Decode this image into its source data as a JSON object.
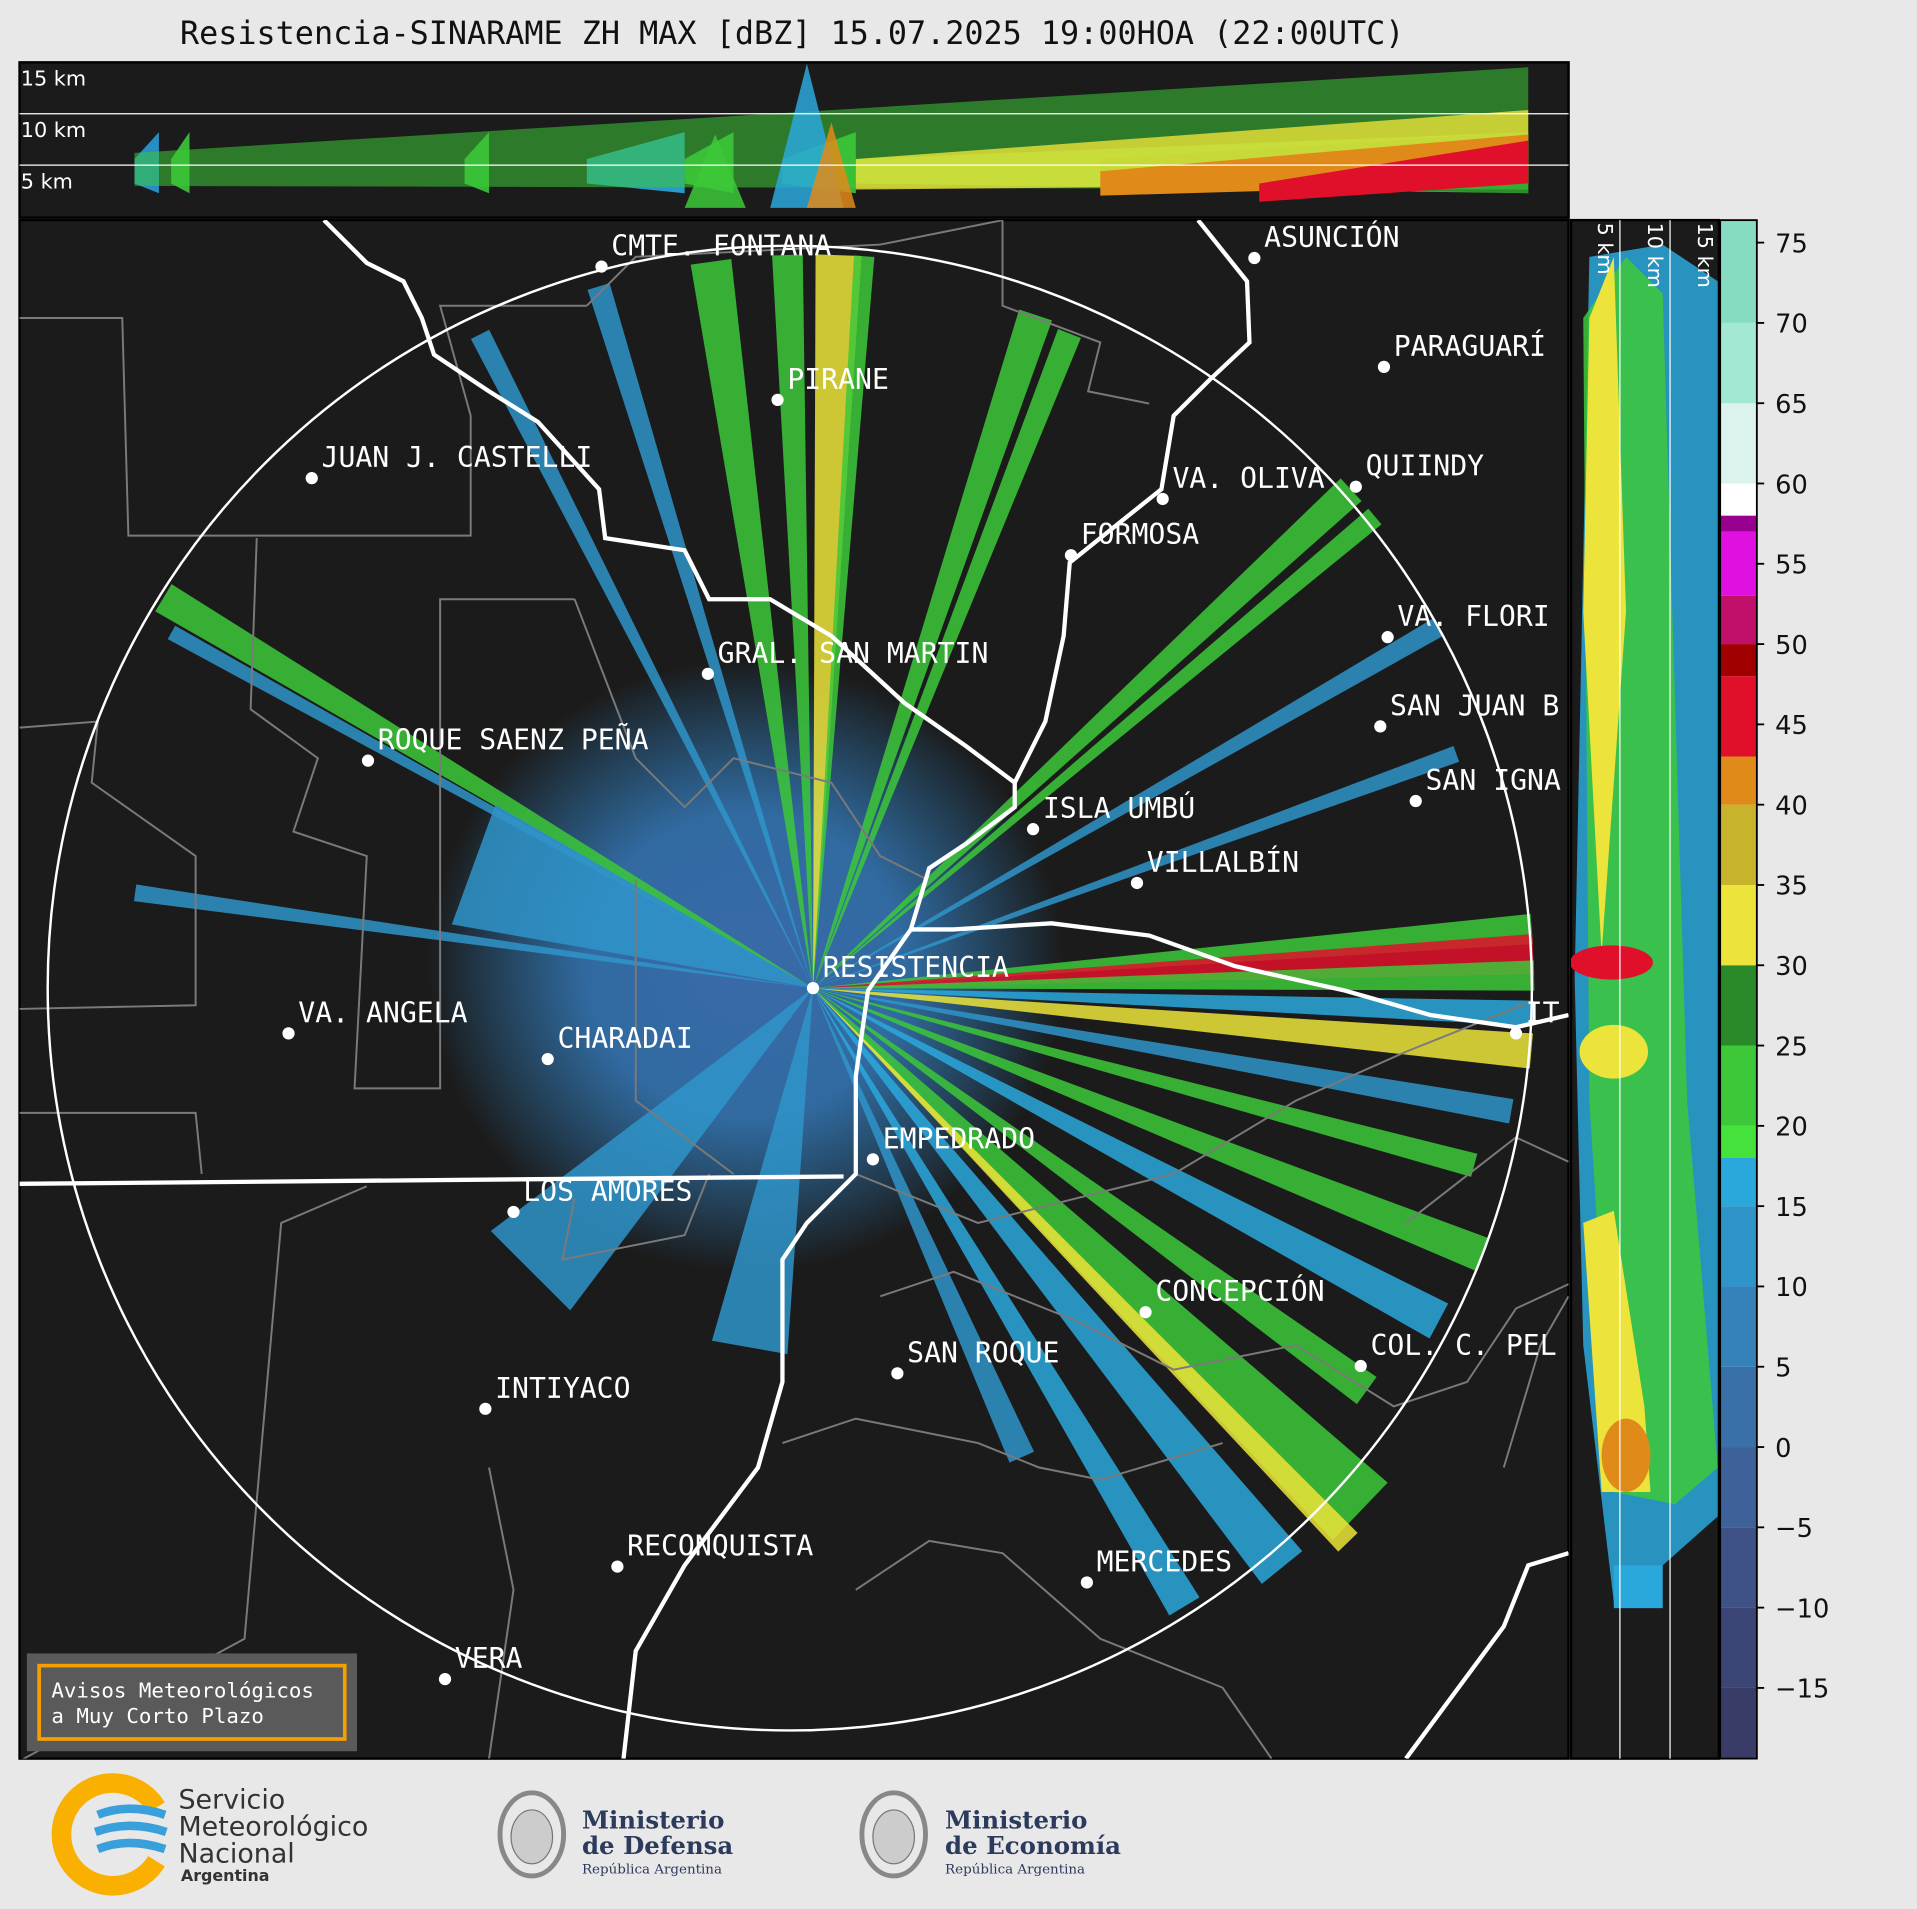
{
  "title": "Resistencia-SINARAME ZH MAX [dBZ] 15.07.2025 19:00HOA (22:00UTC)",
  "top_panel": {
    "height_labels": [
      "15 km",
      "10 km",
      "5 km"
    ]
  },
  "side_panel": {
    "height_labels": [
      "5 km",
      "10 km",
      "15 km"
    ]
  },
  "cities": [
    "CMTE. FONTANA",
    "PIRANE",
    "JUAN J. CASTELLI",
    "ASUNCIÓN",
    "PARAGUARÍ",
    "VA. OLIVA",
    "QUIINDY",
    "FORMOSA",
    "VA. FLORI",
    "GRAL. SAN MARTIN",
    "SAN JUAN B",
    "ROQUE SAENZ PEÑA",
    "SAN IGNA",
    "ISLA UMBÚ",
    "VILLALBÍN",
    "RESISTENCIA",
    "VA. ANGELA",
    "CHARADAI",
    "IT",
    "EMPEDRADO",
    "LOS AMORES",
    "CONCEPCIÓN",
    "COL. C. PEL",
    "SAN ROQUE",
    "INTIYACO",
    "RECONQUISTA",
    "MERCEDES",
    "VERA"
  ],
  "colorbar": {
    "lim": [
      -19.4,
      76.4
    ],
    "ticks": [
      75,
      70,
      65,
      60,
      55,
      50,
      45,
      40,
      35,
      30,
      25,
      20,
      15,
      10,
      5,
      0,
      {
        "value": -5,
        "label": "−5"
      },
      {
        "value": -10,
        "label": "−10"
      },
      {
        "value": -15,
        "label": "−15"
      }
    ],
    "bands": [
      {
        "from": -19.4,
        "color": "#3a3c68"
      },
      {
        "from": -15,
        "color": "#3c4676"
      },
      {
        "from": -10,
        "color": "#3e5287"
      },
      {
        "from": -5,
        "color": "#3d6198"
      },
      {
        "from": 0,
        "color": "#3a70a8"
      },
      {
        "from": 5,
        "color": "#3582bb"
      },
      {
        "from": 10,
        "color": "#2f94c9"
      },
      {
        "from": 15,
        "color": "#2aa8dc"
      },
      {
        "from": 18,
        "color": "#44e23a"
      },
      {
        "from": 20,
        "color": "#3cc838"
      },
      {
        "from": 25,
        "color": "#2a8a2a"
      },
      {
        "from": 30,
        "color": "#ece43a"
      },
      {
        "from": 35,
        "color": "#c8b42c"
      },
      {
        "from": 40,
        "color": "#e08a1a"
      },
      {
        "from": 43,
        "color": "#e0102a"
      },
      {
        "from": 48,
        "color": "#a00000"
      },
      {
        "from": 50,
        "color": "#c0106a"
      },
      {
        "from": 53,
        "color": "#e010e0"
      },
      {
        "from": 57,
        "color": "#9a0090"
      },
      {
        "from": 58,
        "color": "#ffffff"
      },
      {
        "from": 60,
        "color": "#dcf2ec"
      },
      {
        "from": 65,
        "color": "#a2e8d2"
      },
      {
        "from": 70,
        "color": "#86dcc2"
      }
    ]
  },
  "notice": {
    "lines": [
      "Avisos Meteorológicos",
      "a Muy Corto Plazo"
    ]
  },
  "logos": {
    "smn": {
      "lines": [
        "Servicio",
        "Meteorológico",
        "Nacional"
      ],
      "country": "Argentina"
    },
    "defensa": {
      "lines": [
        "Ministerio",
        "de Defensa"
      ],
      "country": "República Argentina"
    },
    "economia": {
      "lines": [
        "Ministerio",
        "de Economía"
      ],
      "country": "República Argentina"
    }
  }
}
